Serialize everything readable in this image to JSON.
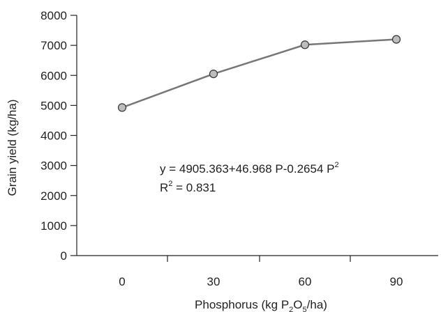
{
  "chart_data": {
    "type": "line",
    "x": [
      0,
      30,
      60,
      90
    ],
    "series": [
      {
        "values": [
          4930,
          6050,
          7020,
          7200
        ]
      }
    ],
    "x_ticks": [
      "0",
      "30",
      "60",
      "90"
    ],
    "y_ticks": [
      "0",
      "1000",
      "2000",
      "3000",
      "4000",
      "5000",
      "6000",
      "7000",
      "8000"
    ],
    "ylim": [
      0,
      8000
    ],
    "xlabel_parts": {
      "pre": "Phosphorus (kg P",
      "sub1": "2",
      "mid": "O",
      "sub2": "5",
      "post": "/ha)"
    },
    "ylabel": "Grain yield (kg/ha)",
    "annotation": {
      "equation_main": "y = 4905.363+46.968 P-0.2654 P",
      "equation_sup": "2",
      "r2_pre": "R",
      "r2_sup": "2",
      "r2_post": " = 0.831"
    },
    "grid": false,
    "colors": {
      "line": "#777777",
      "marker_fill": "#bdbdbd",
      "marker_stroke": "#333333",
      "axis": "#222222"
    }
  }
}
